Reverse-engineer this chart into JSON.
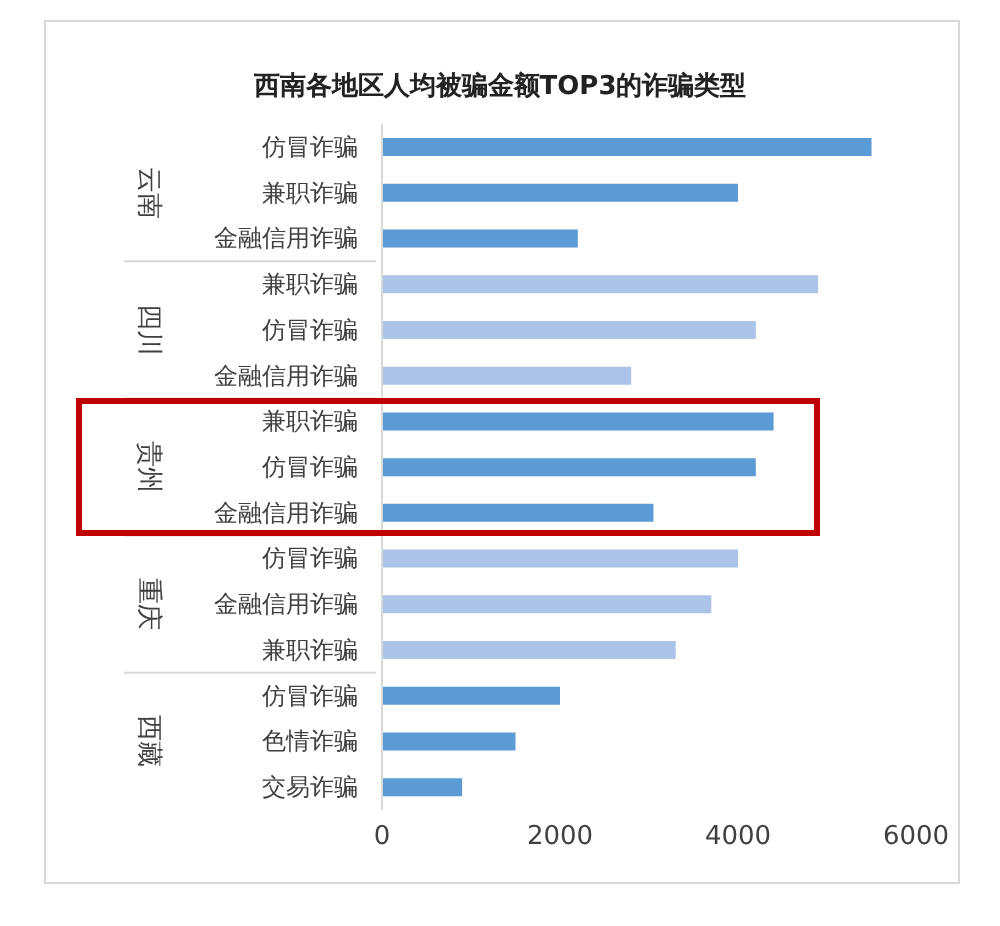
{
  "chart_data": {
    "type": "bar",
    "orientation": "horizontal",
    "title": "西南各地区人均被骗金额TOP3的诈骗类型",
    "categories": [
      "仿冒诈骗",
      "兼职诈骗",
      "金融信用诈骗",
      "兼职诈骗",
      "仿冒诈骗",
      "金融信用诈骗",
      "兼职诈骗",
      "仿冒诈骗",
      "金融信用诈骗",
      "仿冒诈骗",
      "金融信用诈骗",
      "兼职诈骗",
      "仿冒诈骗",
      "色情诈骗",
      "交易诈骗"
    ],
    "values": [
      5500,
      4000,
      2200,
      4900,
      4200,
      2800,
      4400,
      4200,
      3050,
      4000,
      3700,
      3300,
      2000,
      1500,
      900
    ],
    "colors": [
      "#5b9bd5",
      "#5b9bd5",
      "#5b9bd5",
      "#aac3e6",
      "#aac3e6",
      "#aac3e6",
      "#5b9bd5",
      "#5b9bd5",
      "#5b9bd5",
      "#aac3e6",
      "#aac3e6",
      "#aac3e6",
      "#5b9bd5",
      "#5b9bd5",
      "#5b9bd5"
    ],
    "annotations": [
      "云南",
      "四川",
      "贵州",
      "重庆",
      "西藏"
    ],
    "xlim": [
      0,
      6000
    ],
    "xticks": [
      0,
      2000,
      4000,
      6000
    ],
    "grid": false,
    "legend": false
  }
}
